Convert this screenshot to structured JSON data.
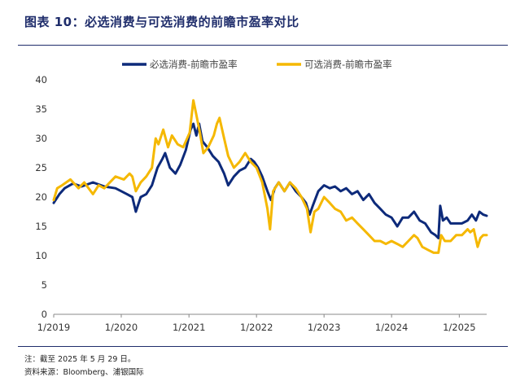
{
  "figure": {
    "title": "图表 10：必选消费与可选消费的前瞻市盈率对比",
    "note": "注：截至 2025 年 5 月 29 日。",
    "source": "资料来源：Bloomberg、浦银国际"
  },
  "chart_data": {
    "type": "line",
    "title": "",
    "xlabel": "",
    "ylabel": "",
    "ylim": [
      0,
      40
    ],
    "yticks": [
      0,
      5,
      10,
      15,
      20,
      25,
      30,
      35,
      40
    ],
    "xlim": [
      "2019-01-01",
      "2025-05-29"
    ],
    "xticks": [
      {
        "date": "2019-01-01",
        "label": "1/2019"
      },
      {
        "date": "2020-01-01",
        "label": "1/2020"
      },
      {
        "date": "2021-01-01",
        "label": "1/2021"
      },
      {
        "date": "2022-01-01",
        "label": "1/2022"
      },
      {
        "date": "2023-01-01",
        "label": "1/2023"
      },
      {
        "date": "2024-01-01",
        "label": "1/2024"
      },
      {
        "date": "2025-01-01",
        "label": "1/2025"
      }
    ],
    "grid": false,
    "legend": "top-center",
    "series": [
      {
        "name": "必选消费-前瞻市盈率",
        "color": "#0d2a7a",
        "points": [
          [
            "2019-01-01",
            19.0
          ],
          [
            "2019-02-01",
            20.5
          ],
          [
            "2019-03-01",
            21.5
          ],
          [
            "2019-04-15",
            22.3
          ],
          [
            "2019-06-01",
            21.8
          ],
          [
            "2019-08-01",
            22.5
          ],
          [
            "2019-10-01",
            21.8
          ],
          [
            "2019-12-01",
            21.5
          ],
          [
            "2020-01-01",
            21.0
          ],
          [
            "2020-02-01",
            20.5
          ],
          [
            "2020-03-01",
            20.0
          ],
          [
            "2020-03-20",
            17.5
          ],
          [
            "2020-04-15",
            20.0
          ],
          [
            "2020-05-15",
            20.5
          ],
          [
            "2020-06-15",
            22.0
          ],
          [
            "2020-07-15",
            25.0
          ],
          [
            "2020-08-10",
            26.5
          ],
          [
            "2020-08-25",
            27.5
          ],
          [
            "2020-09-20",
            25.0
          ],
          [
            "2020-10-20",
            24.0
          ],
          [
            "2020-11-15",
            25.5
          ],
          [
            "2020-12-15",
            28.0
          ],
          [
            "2021-01-10",
            31.5
          ],
          [
            "2021-01-25",
            32.5
          ],
          [
            "2021-02-10",
            30.5
          ],
          [
            "2021-02-25",
            32.5
          ],
          [
            "2021-03-15",
            29.5
          ],
          [
            "2021-04-10",
            28.5
          ],
          [
            "2021-05-10",
            27.0
          ],
          [
            "2021-06-10",
            26.0
          ],
          [
            "2021-07-10",
            24.0
          ],
          [
            "2021-08-01",
            22.0
          ],
          [
            "2021-09-01",
            23.5
          ],
          [
            "2021-10-01",
            24.5
          ],
          [
            "2021-11-01",
            25.0
          ],
          [
            "2021-12-01",
            26.5
          ],
          [
            "2021-12-20",
            26.0
          ],
          [
            "2022-01-10",
            25.0
          ],
          [
            "2022-02-01",
            23.5
          ],
          [
            "2022-03-01",
            21.0
          ],
          [
            "2022-03-20",
            19.5
          ],
          [
            "2022-04-10",
            21.5
          ],
          [
            "2022-05-01",
            22.5
          ],
          [
            "2022-06-01",
            21.0
          ],
          [
            "2022-07-01",
            22.5
          ],
          [
            "2022-08-01",
            21.0
          ],
          [
            "2022-09-01",
            20.0
          ],
          [
            "2022-09-25",
            19.0
          ],
          [
            "2022-10-15",
            17.0
          ],
          [
            "2022-11-01",
            18.5
          ],
          [
            "2022-12-01",
            21.0
          ],
          [
            "2023-01-01",
            22.0
          ],
          [
            "2023-02-01",
            21.5
          ],
          [
            "2023-03-01",
            21.8
          ],
          [
            "2023-04-01",
            21.0
          ],
          [
            "2023-05-01",
            21.5
          ],
          [
            "2023-06-01",
            20.5
          ],
          [
            "2023-07-01",
            21.0
          ],
          [
            "2023-08-01",
            19.5
          ],
          [
            "2023-09-01",
            20.5
          ],
          [
            "2023-10-01",
            19.0
          ],
          [
            "2023-11-01",
            18.0
          ],
          [
            "2023-12-01",
            17.0
          ],
          [
            "2024-01-01",
            16.5
          ],
          [
            "2024-02-01",
            15.0
          ],
          [
            "2024-03-01",
            16.5
          ],
          [
            "2024-04-01",
            16.5
          ],
          [
            "2024-05-01",
            17.5
          ],
          [
            "2024-06-01",
            16.0
          ],
          [
            "2024-07-01",
            15.5
          ],
          [
            "2024-08-01",
            14.0
          ],
          [
            "2024-08-25",
            13.5
          ],
          [
            "2024-09-10",
            13.0
          ],
          [
            "2024-09-20",
            18.5
          ],
          [
            "2024-10-05",
            16.0
          ],
          [
            "2024-10-25",
            16.5
          ],
          [
            "2024-11-15",
            15.5
          ],
          [
            "2024-12-15",
            15.5
          ],
          [
            "2025-01-15",
            15.5
          ],
          [
            "2025-02-15",
            16.0
          ],
          [
            "2025-03-10",
            17.0
          ],
          [
            "2025-04-01",
            16.0
          ],
          [
            "2025-04-20",
            17.5
          ],
          [
            "2025-05-10",
            17.0
          ],
          [
            "2025-05-29",
            16.8
          ]
        ]
      },
      {
        "name": "可选消费-前瞻市盈率",
        "color": "#f5b800",
        "points": [
          [
            "2019-01-01",
            19.5
          ],
          [
            "2019-01-20",
            21.5
          ],
          [
            "2019-02-15",
            22.0
          ],
          [
            "2019-04-01",
            23.0
          ],
          [
            "2019-05-15",
            21.5
          ],
          [
            "2019-06-15",
            22.5
          ],
          [
            "2019-08-01",
            20.5
          ],
          [
            "2019-09-01",
            22.0
          ],
          [
            "2019-10-01",
            21.5
          ],
          [
            "2019-12-01",
            23.5
          ],
          [
            "2020-01-15",
            23.0
          ],
          [
            "2020-02-15",
            24.0
          ],
          [
            "2020-03-01",
            23.5
          ],
          [
            "2020-03-20",
            21.0
          ],
          [
            "2020-04-15",
            22.5
          ],
          [
            "2020-05-15",
            23.5
          ],
          [
            "2020-06-15",
            25.0
          ],
          [
            "2020-07-05",
            30.0
          ],
          [
            "2020-07-20",
            29.0
          ],
          [
            "2020-08-15",
            31.5
          ],
          [
            "2020-09-10",
            28.5
          ],
          [
            "2020-10-01",
            30.5
          ],
          [
            "2020-11-01",
            29.0
          ],
          [
            "2020-12-01",
            28.5
          ],
          [
            "2021-01-05",
            31.0
          ],
          [
            "2021-01-25",
            36.5
          ],
          [
            "2021-02-10",
            34.0
          ],
          [
            "2021-03-01",
            31.0
          ],
          [
            "2021-03-20",
            27.5
          ],
          [
            "2021-04-15",
            28.5
          ],
          [
            "2021-05-15",
            30.5
          ],
          [
            "2021-06-01",
            32.5
          ],
          [
            "2021-06-15",
            33.5
          ],
          [
            "2021-07-10",
            30.0
          ],
          [
            "2021-08-01",
            27.0
          ],
          [
            "2021-09-01",
            25.0
          ],
          [
            "2021-10-01",
            26.0
          ],
          [
            "2021-11-01",
            27.5
          ],
          [
            "2021-12-01",
            26.0
          ],
          [
            "2022-01-01",
            25.0
          ],
          [
            "2022-02-01",
            22.5
          ],
          [
            "2022-03-01",
            18.0
          ],
          [
            "2022-03-15",
            14.5
          ],
          [
            "2022-04-01",
            21.0
          ],
          [
            "2022-05-01",
            22.5
          ],
          [
            "2022-06-01",
            21.0
          ],
          [
            "2022-07-01",
            22.5
          ],
          [
            "2022-08-01",
            21.5
          ],
          [
            "2022-09-01",
            20.0
          ],
          [
            "2022-10-01",
            18.0
          ],
          [
            "2022-10-20",
            14.0
          ],
          [
            "2022-11-10",
            17.5
          ],
          [
            "2022-12-01",
            18.0
          ],
          [
            "2023-01-01",
            20.0
          ],
          [
            "2023-02-01",
            19.0
          ],
          [
            "2023-03-01",
            18.0
          ],
          [
            "2023-04-01",
            17.5
          ],
          [
            "2023-05-01",
            16.0
          ],
          [
            "2023-06-01",
            16.5
          ],
          [
            "2023-07-01",
            15.5
          ],
          [
            "2023-08-01",
            14.5
          ],
          [
            "2023-09-01",
            13.5
          ],
          [
            "2023-10-01",
            12.5
          ],
          [
            "2023-11-01",
            12.5
          ],
          [
            "2023-12-01",
            12.0
          ],
          [
            "2024-01-01",
            12.5
          ],
          [
            "2024-02-01",
            12.0
          ],
          [
            "2024-03-01",
            11.5
          ],
          [
            "2024-04-01",
            12.5
          ],
          [
            "2024-05-01",
            13.5
          ],
          [
            "2024-05-20",
            13.0
          ],
          [
            "2024-06-15",
            11.5
          ],
          [
            "2024-07-15",
            11.0
          ],
          [
            "2024-08-15",
            10.5
          ],
          [
            "2024-09-10",
            10.5
          ],
          [
            "2024-09-25",
            13.5
          ],
          [
            "2024-10-15",
            12.5
          ],
          [
            "2024-11-15",
            12.5
          ],
          [
            "2024-12-15",
            13.5
          ],
          [
            "2025-01-15",
            13.5
          ],
          [
            "2025-02-15",
            14.5
          ],
          [
            "2025-03-01",
            14.0
          ],
          [
            "2025-03-20",
            14.5
          ],
          [
            "2025-04-10",
            11.5
          ],
          [
            "2025-04-25",
            13.0
          ],
          [
            "2025-05-10",
            13.5
          ],
          [
            "2025-05-29",
            13.5
          ]
        ]
      }
    ]
  }
}
